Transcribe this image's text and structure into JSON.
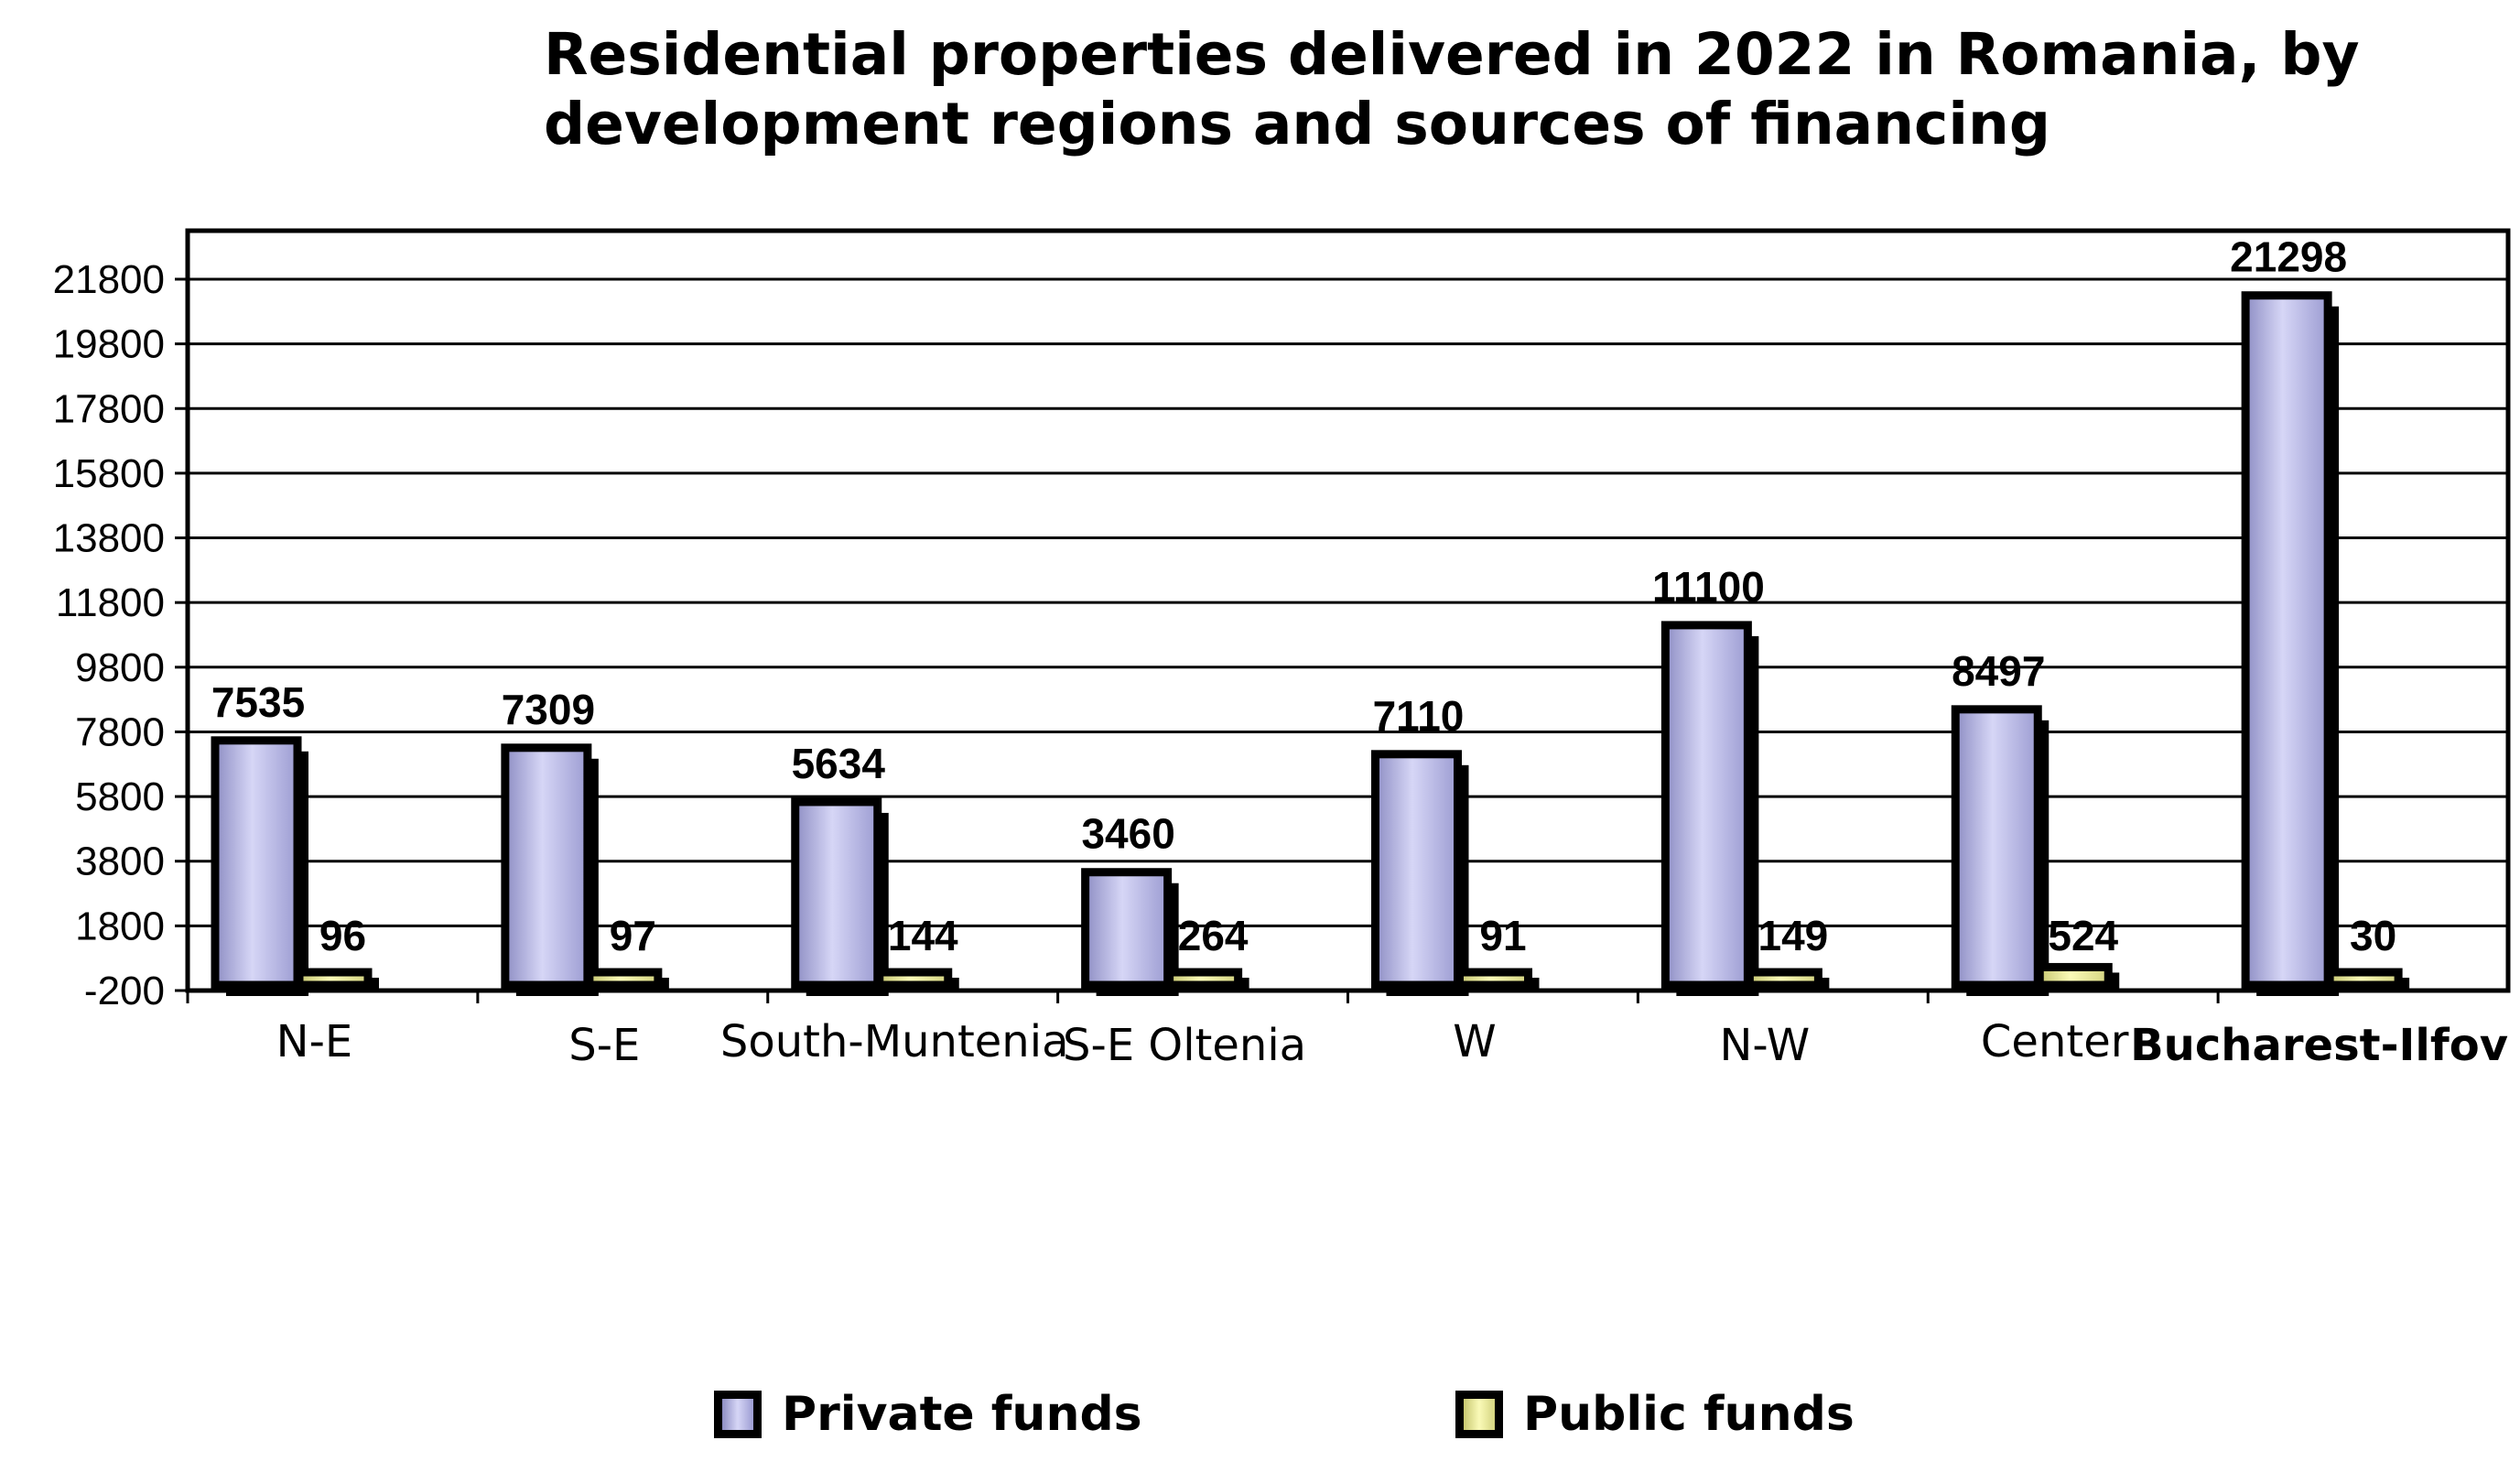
{
  "chart_data": {
    "type": "bar",
    "title_lines": [
      "Residential properties delivered in 2022 in Romania, by",
      "development regions and sources of financing"
    ],
    "categories": [
      "N-E",
      "S-E",
      "South-Muntenia",
      "S-E Oltenia",
      "W",
      "N-W",
      "Center",
      "Bucharest-Ilfov"
    ],
    "series": [
      {
        "name": "Private funds",
        "values": [
          7535,
          7309,
          5634,
          3460,
          7110,
          11100,
          8497,
          21298
        ],
        "color": "#b4b4e6"
      },
      {
        "name": "Public funds",
        "values": [
          96,
          97,
          144,
          264,
          91,
          149,
          524,
          30
        ],
        "color": "#f0f0a0"
      }
    ],
    "yticks": [
      "-200",
      "1800",
      "3800",
      "5800",
      "7800",
      "9800",
      "11800",
      "13800",
      "15800",
      "17800",
      "19800",
      "21800"
    ],
    "ylim": [
      -200,
      23300
    ],
    "xlabel": "",
    "ylabel": "",
    "grid": true,
    "legend_position": "bottom"
  },
  "colors": {
    "frame": "#000000",
    "grid": "#000000",
    "background": "#ffffff"
  }
}
